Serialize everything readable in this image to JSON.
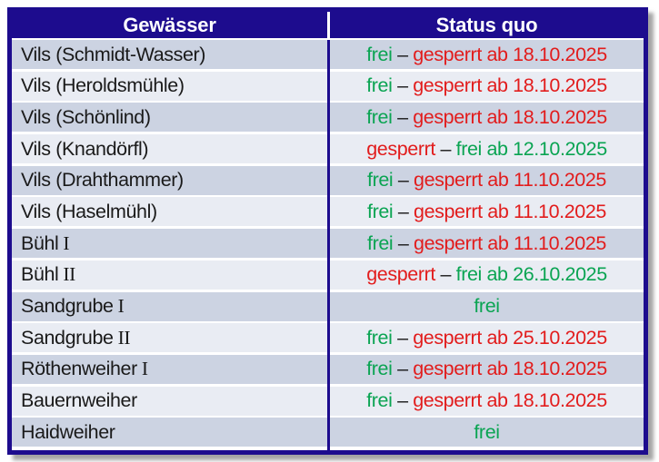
{
  "colors": {
    "navy": "#1d0c8e",
    "row_dark": "#ccd3e2",
    "row_light": "#e9ecf3",
    "free_green": "#0aa452",
    "blocked_red": "#e21c1c",
    "text_dark": "#1a1a1a"
  },
  "table": {
    "headers": [
      "Gewässer",
      "Status quo"
    ],
    "rows": [
      {
        "name": "Vils (Schmidt-Wasser)",
        "suffix": "",
        "status": [
          {
            "text": "frei",
            "color": "green"
          },
          {
            "text": " – ",
            "color": "dark"
          },
          {
            "text": "gesperrt ab 18.10.2025",
            "color": "red"
          }
        ]
      },
      {
        "name": "Vils (Heroldsmühle)",
        "suffix": "",
        "status": [
          {
            "text": "frei",
            "color": "green"
          },
          {
            "text": " – ",
            "color": "dark"
          },
          {
            "text": "gesperrt ab 18.10.2025",
            "color": "red"
          }
        ]
      },
      {
        "name": "Vils (Schönlind)",
        "suffix": "",
        "status": [
          {
            "text": "frei",
            "color": "green"
          },
          {
            "text": " – ",
            "color": "dark"
          },
          {
            "text": "gesperrt ab 18.10.2025",
            "color": "red"
          }
        ]
      },
      {
        "name": "Vils (Knandörfl)",
        "suffix": "",
        "status": [
          {
            "text": "gesperrt",
            "color": "red"
          },
          {
            "text": " – ",
            "color": "dark"
          },
          {
            "text": "frei ab 12.10.2025",
            "color": "green"
          }
        ]
      },
      {
        "name": "Vils (Drahthammer)",
        "suffix": "",
        "status": [
          {
            "text": "frei",
            "color": "green"
          },
          {
            "text": " – ",
            "color": "dark"
          },
          {
            "text": "gesperrt ab 11.10.2025",
            "color": "red"
          }
        ]
      },
      {
        "name": "Vils (Haselmühl)",
        "suffix": "",
        "status": [
          {
            "text": "frei",
            "color": "green"
          },
          {
            "text": " – ",
            "color": "dark"
          },
          {
            "text": "gesperrt ab 11.10.2025",
            "color": "red"
          }
        ]
      },
      {
        "name": "Bühl",
        "suffix": " I",
        "status": [
          {
            "text": "frei",
            "color": "green"
          },
          {
            "text": " – ",
            "color": "dark"
          },
          {
            "text": "gesperrt ab 11.10.2025",
            "color": "red"
          }
        ]
      },
      {
        "name": "Bühl",
        "suffix": " II",
        "status": [
          {
            "text": "gesperrt",
            "color": "red"
          },
          {
            "text": " – ",
            "color": "dark"
          },
          {
            "text": "frei ab 26.10.2025",
            "color": "green"
          }
        ]
      },
      {
        "name": "Sandgrube",
        "suffix": " I",
        "status": [
          {
            "text": "frei",
            "color": "green"
          }
        ]
      },
      {
        "name": "Sandgrube",
        "suffix": " II",
        "status": [
          {
            "text": "frei",
            "color": "green"
          },
          {
            "text": " – ",
            "color": "dark"
          },
          {
            "text": "gesperrt ab 25.10.2025",
            "color": "red"
          }
        ]
      },
      {
        "name": "Röthenweiher",
        "suffix": " I",
        "status": [
          {
            "text": "frei",
            "color": "green"
          },
          {
            "text": " – ",
            "color": "dark"
          },
          {
            "text": "gesperrt ab 18.10.2025",
            "color": "red"
          }
        ]
      },
      {
        "name": "Bauernweiher",
        "suffix": "",
        "status": [
          {
            "text": "frei",
            "color": "green"
          },
          {
            "text": " – ",
            "color": "dark"
          },
          {
            "text": "gesperrt ab 18.10.2025",
            "color": "red"
          }
        ]
      },
      {
        "name": "Haidweiher",
        "suffix": "",
        "status": [
          {
            "text": "frei",
            "color": "green"
          }
        ]
      }
    ]
  }
}
